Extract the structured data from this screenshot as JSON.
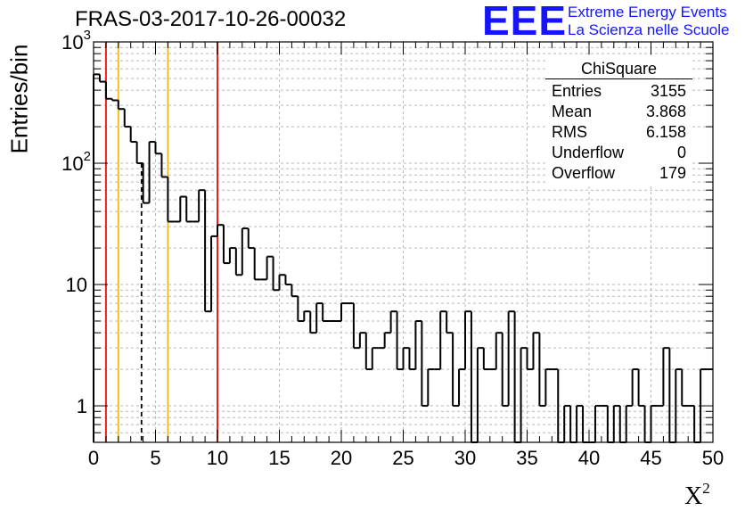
{
  "title": "FRAS-03-2017-10-26-00032",
  "logo": {
    "mark": "EEE",
    "line1": "Extreme Energy Events",
    "line2": "La Scienza nelle Scuole",
    "color": "#1414ff"
  },
  "stats_box": {
    "title": "ChiSquare",
    "rows": [
      {
        "label": "Entries",
        "value": "3155"
      },
      {
        "label": "Mean",
        "value": "3.868"
      },
      {
        "label": "RMS",
        "value": "6.158"
      },
      {
        "label": "Underflow",
        "value": "0"
      },
      {
        "label": "Overflow",
        "value": "179"
      }
    ]
  },
  "chart_data": {
    "type": "bar",
    "style": "step-histogram",
    "title": "FRAS-03-2017-10-26-00032",
    "xlabel": "X",
    "xlabel_superscript": "2",
    "ylabel": "Entries/bin",
    "xlim": [
      0,
      50
    ],
    "ylim": [
      0.5,
      1000
    ],
    "yscale": "log",
    "grid": true,
    "bin_width": 0.5,
    "x_ticks": [
      "0",
      "5",
      "10",
      "15",
      "20",
      "25",
      "30",
      "35",
      "40",
      "45",
      "50"
    ],
    "x_tick_values": [
      0,
      5,
      10,
      15,
      20,
      25,
      30,
      35,
      40,
      45,
      50
    ],
    "y_ticks": [
      {
        "value": 1,
        "mantissa": "1",
        "exp": ""
      },
      {
        "value": 10,
        "mantissa": "10",
        "exp": ""
      },
      {
        "value": 100,
        "mantissa": "10",
        "exp": "2"
      },
      {
        "value": 1000,
        "mantissa": "10",
        "exp": "3"
      }
    ],
    "values": [
      540,
      470,
      340,
      330,
      280,
      200,
      150,
      100,
      47,
      150,
      120,
      77,
      33,
      33,
      53,
      33,
      33,
      60,
      6,
      25,
      31,
      15,
      20,
      12,
      29,
      20,
      11,
      11,
      17,
      9,
      12,
      10,
      8,
      5,
      6,
      4,
      7,
      5,
      5,
      5,
      7,
      7,
      3,
      4,
      2,
      3,
      3,
      4,
      6,
      2,
      3,
      2,
      5,
      1,
      2,
      2,
      6,
      4,
      1,
      2,
      6,
      0,
      3,
      2,
      2,
      4,
      1,
      6,
      0,
      3,
      2,
      4,
      1,
      2,
      2,
      0,
      1,
      0,
      1,
      0,
      0,
      1,
      1,
      0,
      1,
      0,
      1,
      2,
      1,
      0,
      1,
      1,
      3,
      0,
      2,
      1,
      1,
      0,
      2,
      2
    ],
    "vertical_lines": [
      {
        "x": 1,
        "color": "#e8231b",
        "style": "solid"
      },
      {
        "x": 2,
        "color": "#f2c01e",
        "style": "solid"
      },
      {
        "x": 3.87,
        "color": "#000000",
        "style": "dashed"
      },
      {
        "x": 6,
        "color": "#f2c01e",
        "style": "solid"
      },
      {
        "x": 10,
        "color": "#e8231b",
        "style": "solid"
      }
    ]
  }
}
